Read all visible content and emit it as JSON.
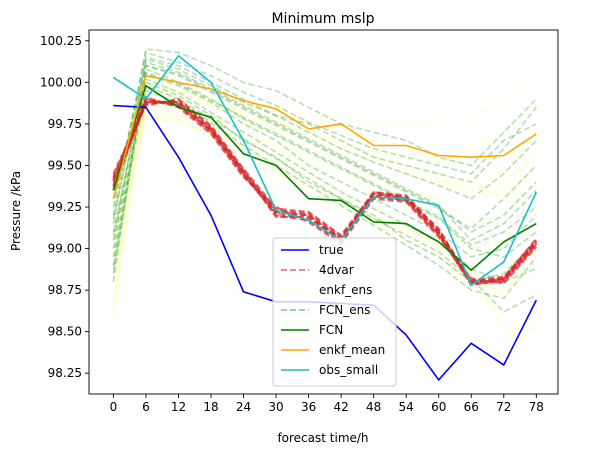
{
  "chart_data": {
    "type": "line",
    "title": "Minimum mslp",
    "xlabel": "forecast time/h",
    "ylabel": "Pressure /kPa",
    "x": [
      0,
      6,
      12,
      18,
      24,
      30,
      36,
      42,
      48,
      54,
      60,
      66,
      72,
      78
    ],
    "xlim": [
      -4.5,
      82
    ],
    "ylim": [
      98.125,
      100.315
    ],
    "yticks": [
      98.25,
      98.5,
      98.75,
      99.0,
      99.25,
      99.5,
      99.75,
      100.0,
      100.25
    ],
    "ytick_labels": [
      "98.25",
      "98.50",
      "98.75",
      "99.00",
      "99.25",
      "99.50",
      "99.75",
      "100.00",
      "100.25"
    ],
    "xtick_labels": [
      "0",
      "6",
      "12",
      "18",
      "24",
      "30",
      "36",
      "42",
      "48",
      "54",
      "60",
      "66",
      "72",
      "78"
    ],
    "legend_position": "lower-center",
    "series": [
      {
        "name": "true",
        "color": "#0000ff",
        "style": "solid",
        "values": [
          99.86,
          99.85,
          99.55,
          99.2,
          98.74,
          98.68,
          98.68,
          98.67,
          98.66,
          98.48,
          98.21,
          98.43,
          98.3,
          98.69
        ]
      },
      {
        "name": "4dvar",
        "color": "#d62728",
        "style": "dashed",
        "opacity": 0.7,
        "members": [
          [
            99.42,
            99.88,
            99.88,
            99.72,
            99.47,
            99.22,
            99.2,
            99.06,
            99.33,
            99.31,
            99.1,
            98.8,
            98.82,
            99.04
          ],
          [
            99.38,
            99.9,
            99.86,
            99.7,
            99.45,
            99.2,
            99.17,
            99.04,
            99.31,
            99.29,
            99.08,
            98.79,
            98.8,
            99.02
          ],
          [
            99.45,
            99.86,
            99.9,
            99.74,
            99.48,
            99.24,
            99.22,
            99.08,
            99.34,
            99.32,
            99.11,
            98.81,
            98.83,
            99.05
          ],
          [
            99.35,
            99.89,
            99.87,
            99.71,
            99.44,
            99.21,
            99.18,
            99.05,
            99.32,
            99.3,
            99.09,
            98.78,
            98.81,
            99.03
          ],
          [
            99.4,
            99.87,
            99.89,
            99.73,
            99.46,
            99.23,
            99.21,
            99.07,
            99.33,
            99.31,
            99.1,
            98.8,
            98.82,
            99.04
          ],
          [
            99.43,
            99.91,
            99.85,
            99.69,
            99.43,
            99.25,
            99.16,
            99.03,
            99.3,
            99.28,
            99.07,
            98.82,
            98.79,
            99.01
          ],
          [
            99.37,
            99.88,
            99.88,
            99.72,
            99.47,
            99.19,
            99.19,
            99.06,
            99.34,
            99.3,
            99.12,
            98.79,
            98.82,
            99.06
          ],
          [
            99.41,
            99.89,
            99.86,
            99.71,
            99.45,
            99.22,
            99.2,
            99.05,
            99.32,
            99.29,
            99.09,
            98.8,
            98.81,
            99.03
          ]
        ]
      },
      {
        "name": "enkf_ens",
        "color": "#ffff99",
        "style": "dashed",
        "opacity": 0.5,
        "members": [
          [
            98.7,
            99.95,
            99.9,
            99.85,
            99.85,
            99.85,
            99.8,
            99.8,
            99.75,
            99.75,
            99.75,
            99.8,
            99.9,
            100.08
          ],
          [
            98.6,
            99.9,
            99.85,
            99.8,
            99.75,
            99.7,
            99.6,
            99.55,
            99.45,
            99.45,
            99.4,
            99.4,
            99.3,
            99.5
          ],
          [
            99.0,
            100.0,
            99.95,
            99.9,
            99.8,
            99.75,
            99.7,
            99.65,
            99.55,
            99.5,
            99.45,
            99.3,
            99.35,
            99.6
          ],
          [
            99.2,
            99.85,
            99.8,
            99.75,
            99.65,
            99.6,
            99.5,
            99.45,
            99.35,
            99.3,
            99.2,
            99.0,
            99.05,
            99.25
          ],
          [
            98.9,
            99.8,
            99.75,
            99.7,
            99.6,
            99.55,
            99.45,
            99.35,
            99.25,
            99.15,
            99.05,
            98.85,
            98.7,
            99.0
          ],
          [
            99.3,
            100.02,
            99.98,
            99.92,
            99.88,
            99.8,
            99.75,
            99.7,
            99.65,
            99.6,
            99.55,
            99.5,
            99.45,
            99.7
          ],
          [
            98.8,
            99.92,
            99.86,
            99.78,
            99.7,
            99.62,
            99.55,
            99.48,
            99.4,
            99.35,
            99.3,
            99.15,
            99.2,
            99.4
          ],
          [
            99.1,
            99.88,
            99.82,
            99.72,
            99.62,
            99.5,
            99.4,
            99.3,
            99.2,
            99.1,
            99.0,
            98.75,
            98.6,
            98.5
          ],
          [
            98.65,
            99.96,
            99.92,
            99.86,
            99.78,
            99.72,
            99.66,
            99.6,
            99.52,
            99.48,
            99.42,
            99.35,
            99.4,
            99.55
          ],
          [
            99.25,
            99.84,
            99.78,
            99.68,
            99.55,
            99.45,
            99.35,
            99.25,
            99.15,
            99.05,
            98.95,
            98.8,
            98.75,
            98.9
          ],
          [
            98.95,
            99.98,
            99.94,
            99.88,
            99.82,
            99.76,
            99.7,
            99.62,
            99.58,
            99.55,
            99.52,
            99.6,
            99.7,
            99.85
          ],
          [
            99.05,
            99.82,
            99.76,
            99.66,
            99.58,
            99.48,
            99.38,
            99.28,
            99.18,
            99.12,
            99.02,
            98.9,
            98.5,
            98.45
          ]
        ]
      },
      {
        "name": "FCN_ens",
        "color": "#2ca02c",
        "style": "dashed",
        "opacity": 0.35,
        "members": [
          [
            98.8,
            100.1,
            100.05,
            99.95,
            99.85,
            99.75,
            99.65,
            99.55,
            99.45,
            99.35,
            99.25,
            99.1,
            99.2,
            99.4
          ],
          [
            99.0,
            100.15,
            100.1,
            100.0,
            99.9,
            99.8,
            99.75,
            99.65,
            99.55,
            99.5,
            99.45,
            99.4,
            99.6,
            99.85
          ],
          [
            99.2,
            100.2,
            100.18,
            100.1,
            100.0,
            99.95,
            99.85,
            99.75,
            99.7,
            99.65,
            99.55,
            99.5,
            99.7,
            99.9
          ],
          [
            98.9,
            100.05,
            99.98,
            99.88,
            99.75,
            99.65,
            99.5,
            99.4,
            99.3,
            99.2,
            99.1,
            98.95,
            99.0,
            99.2
          ],
          [
            99.1,
            100.0,
            99.92,
            99.8,
            99.65,
            99.55,
            99.4,
            99.3,
            99.2,
            99.05,
            98.95,
            98.8,
            98.85,
            99.05
          ],
          [
            99.3,
            100.12,
            100.06,
            99.96,
            99.86,
            99.76,
            99.66,
            99.56,
            99.46,
            99.36,
            99.26,
            99.05,
            99.15,
            99.35
          ],
          [
            98.85,
            100.08,
            100.0,
            99.9,
            99.78,
            99.68,
            99.58,
            99.48,
            99.38,
            99.28,
            99.18,
            99.0,
            98.95,
            99.1
          ],
          [
            99.05,
            99.95,
            99.88,
            99.76,
            99.62,
            99.5,
            99.38,
            99.26,
            99.14,
            99.02,
            98.9,
            98.75,
            98.7,
            98.95
          ],
          [
            99.15,
            100.14,
            100.08,
            99.98,
            99.88,
            99.8,
            99.7,
            99.6,
            99.52,
            99.45,
            99.38,
            99.3,
            99.45,
            99.65
          ],
          [
            98.95,
            100.02,
            99.94,
            99.82,
            99.7,
            99.58,
            99.46,
            99.34,
            99.24,
            99.14,
            99.04,
            98.88,
            98.8,
            98.88
          ],
          [
            99.25,
            100.18,
            100.12,
            100.04,
            99.94,
            99.86,
            99.76,
            99.68,
            99.6,
            99.55,
            99.5,
            99.45,
            99.65,
            99.75
          ],
          [
            99.08,
            100.06,
            99.99,
            99.89,
            99.79,
            99.69,
            99.59,
            99.49,
            99.39,
            99.29,
            99.19,
            99.02,
            99.1,
            99.25
          ],
          [
            98.88,
            99.98,
            99.9,
            99.78,
            99.66,
            99.54,
            99.42,
            99.3,
            99.18,
            99.08,
            98.98,
            98.82,
            98.62,
            98.72
          ],
          [
            99.18,
            100.1,
            100.04,
            99.94,
            99.84,
            99.74,
            99.64,
            99.54,
            99.44,
            99.34,
            99.24,
            99.12,
            99.3,
            99.5
          ]
        ]
      },
      {
        "name": "FCN",
        "color": "#008000",
        "style": "solid",
        "values": [
          99.35,
          99.98,
          99.85,
          99.79,
          99.57,
          99.5,
          99.3,
          99.29,
          99.16,
          99.15,
          99.04,
          98.87,
          99.04,
          99.15
        ]
      },
      {
        "name": "enkf_mean",
        "color": "#ffa500",
        "style": "solid",
        "values": [
          99.3,
          100.04,
          100.0,
          99.96,
          99.89,
          99.84,
          99.72,
          99.75,
          99.62,
          99.62,
          99.56,
          99.55,
          99.56,
          99.69
        ]
      },
      {
        "name": "obs_small",
        "color": "#17becf",
        "style": "solid",
        "values": [
          100.03,
          99.9,
          100.16,
          100.0,
          99.65,
          99.23,
          99.17,
          99.05,
          99.31,
          99.3,
          99.26,
          98.78,
          98.92,
          99.34
        ]
      }
    ]
  }
}
